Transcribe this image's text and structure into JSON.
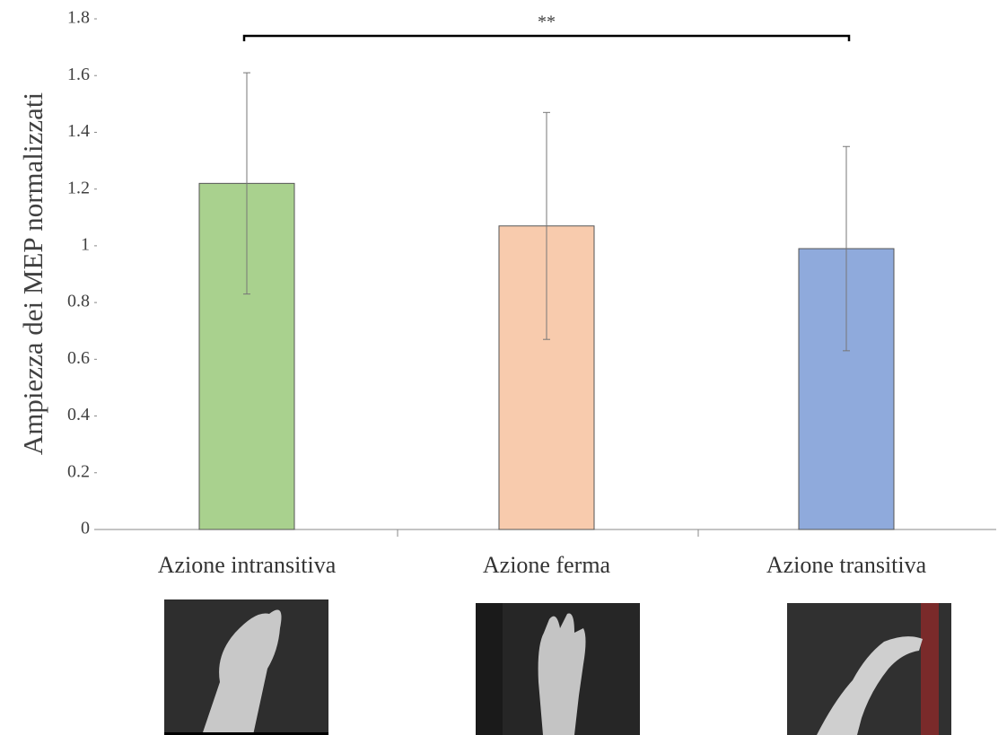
{
  "chart_data": {
    "type": "bar",
    "y_label": "Ampiezza dei MEP normalizzati",
    "categories": [
      "Azione intransitiva",
      "Azione ferma",
      "Azione transitiva"
    ],
    "values": [
      1.22,
      1.07,
      0.99
    ],
    "errors": [
      0.39,
      0.4,
      0.36
    ],
    "colors": [
      "#a9d18e",
      "#f8cbad",
      "#8faadc"
    ],
    "ylim": [
      0,
      1.8
    ],
    "yticks": [
      0,
      0.2,
      0.4,
      0.6,
      0.8,
      1,
      1.2,
      1.4,
      1.6,
      1.8
    ],
    "significance": {
      "label": "**",
      "between": [
        0,
        2
      ]
    }
  }
}
